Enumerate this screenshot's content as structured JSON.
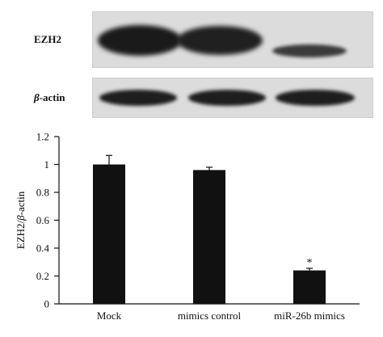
{
  "blot": {
    "ezh2_label": "EZH2",
    "bactin_beta": "β",
    "bactin_rest": "-actin"
  },
  "chart_data": {
    "type": "bar",
    "categories": [
      "Mock",
      "mimics control",
      "miR-26b mimics"
    ],
    "values": [
      1.0,
      0.96,
      0.24
    ],
    "errors": [
      0.065,
      0.02,
      0.015
    ],
    "annotations": [
      "",
      "",
      "*"
    ],
    "ylabel_pre": "EZH2/",
    "ylabel_beta": "β",
    "ylabel_post": "-actin",
    "ylim": [
      0,
      1.2
    ],
    "yticks": [
      0,
      0.2,
      0.4,
      0.6,
      0.8,
      1,
      1.2
    ],
    "ytick_labels": [
      "0",
      "0.2",
      "0.4",
      "0.6",
      "0.8",
      "1",
      "1.2"
    ],
    "bar_color": "#111111"
  }
}
